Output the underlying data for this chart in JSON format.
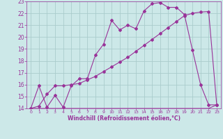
{
  "xlabel": "Windchill (Refroidissement éolien,°C)",
  "bg_color": "#cce8e8",
  "grid_color": "#aacccc",
  "line_color": "#993399",
  "xlim": [
    -0.5,
    23.5
  ],
  "ylim": [
    14,
    23
  ],
  "xticks": [
    0,
    1,
    2,
    3,
    4,
    5,
    6,
    7,
    8,
    9,
    10,
    11,
    12,
    13,
    14,
    15,
    16,
    17,
    18,
    19,
    20,
    21,
    22,
    23
  ],
  "yticks": [
    14,
    15,
    16,
    17,
    18,
    19,
    20,
    21,
    22,
    23
  ],
  "line1_x": [
    0,
    1,
    2,
    3,
    4,
    5,
    6,
    7,
    8,
    9,
    10,
    11,
    12,
    13,
    14,
    15,
    16,
    17,
    18,
    19,
    20,
    21,
    22,
    23
  ],
  "line1_y": [
    14,
    14,
    14,
    14,
    14,
    14,
    14,
    14,
    14,
    14,
    14,
    14,
    14,
    14,
    14,
    14,
    14,
    14,
    14,
    14,
    14,
    14,
    14,
    14.3
  ],
  "line2_x": [
    0,
    1,
    2,
    3,
    4,
    5,
    6,
    7,
    8,
    9,
    10,
    11,
    12,
    13,
    14,
    15,
    16,
    17,
    18,
    19,
    20,
    21,
    22,
    23
  ],
  "line2_y": [
    14,
    14.2,
    15.2,
    15.9,
    15.9,
    16.0,
    16.1,
    16.4,
    16.7,
    17.1,
    17.5,
    17.9,
    18.3,
    18.8,
    19.3,
    19.8,
    20.3,
    20.8,
    21.3,
    21.8,
    22.0,
    22.1,
    22.15,
    14.3
  ],
  "line3_x": [
    0,
    1,
    2,
    3,
    4,
    5,
    6,
    7,
    8,
    9,
    10,
    11,
    12,
    13,
    14,
    15,
    16,
    17,
    18,
    19,
    20,
    21,
    22,
    23
  ],
  "line3_y": [
    14,
    15.9,
    14.1,
    15.1,
    14.1,
    15.9,
    16.5,
    16.5,
    18.5,
    19.4,
    21.4,
    20.6,
    21.0,
    20.7,
    22.2,
    22.8,
    22.9,
    22.5,
    22.5,
    21.9,
    18.9,
    16.0,
    14.3,
    14.3
  ]
}
